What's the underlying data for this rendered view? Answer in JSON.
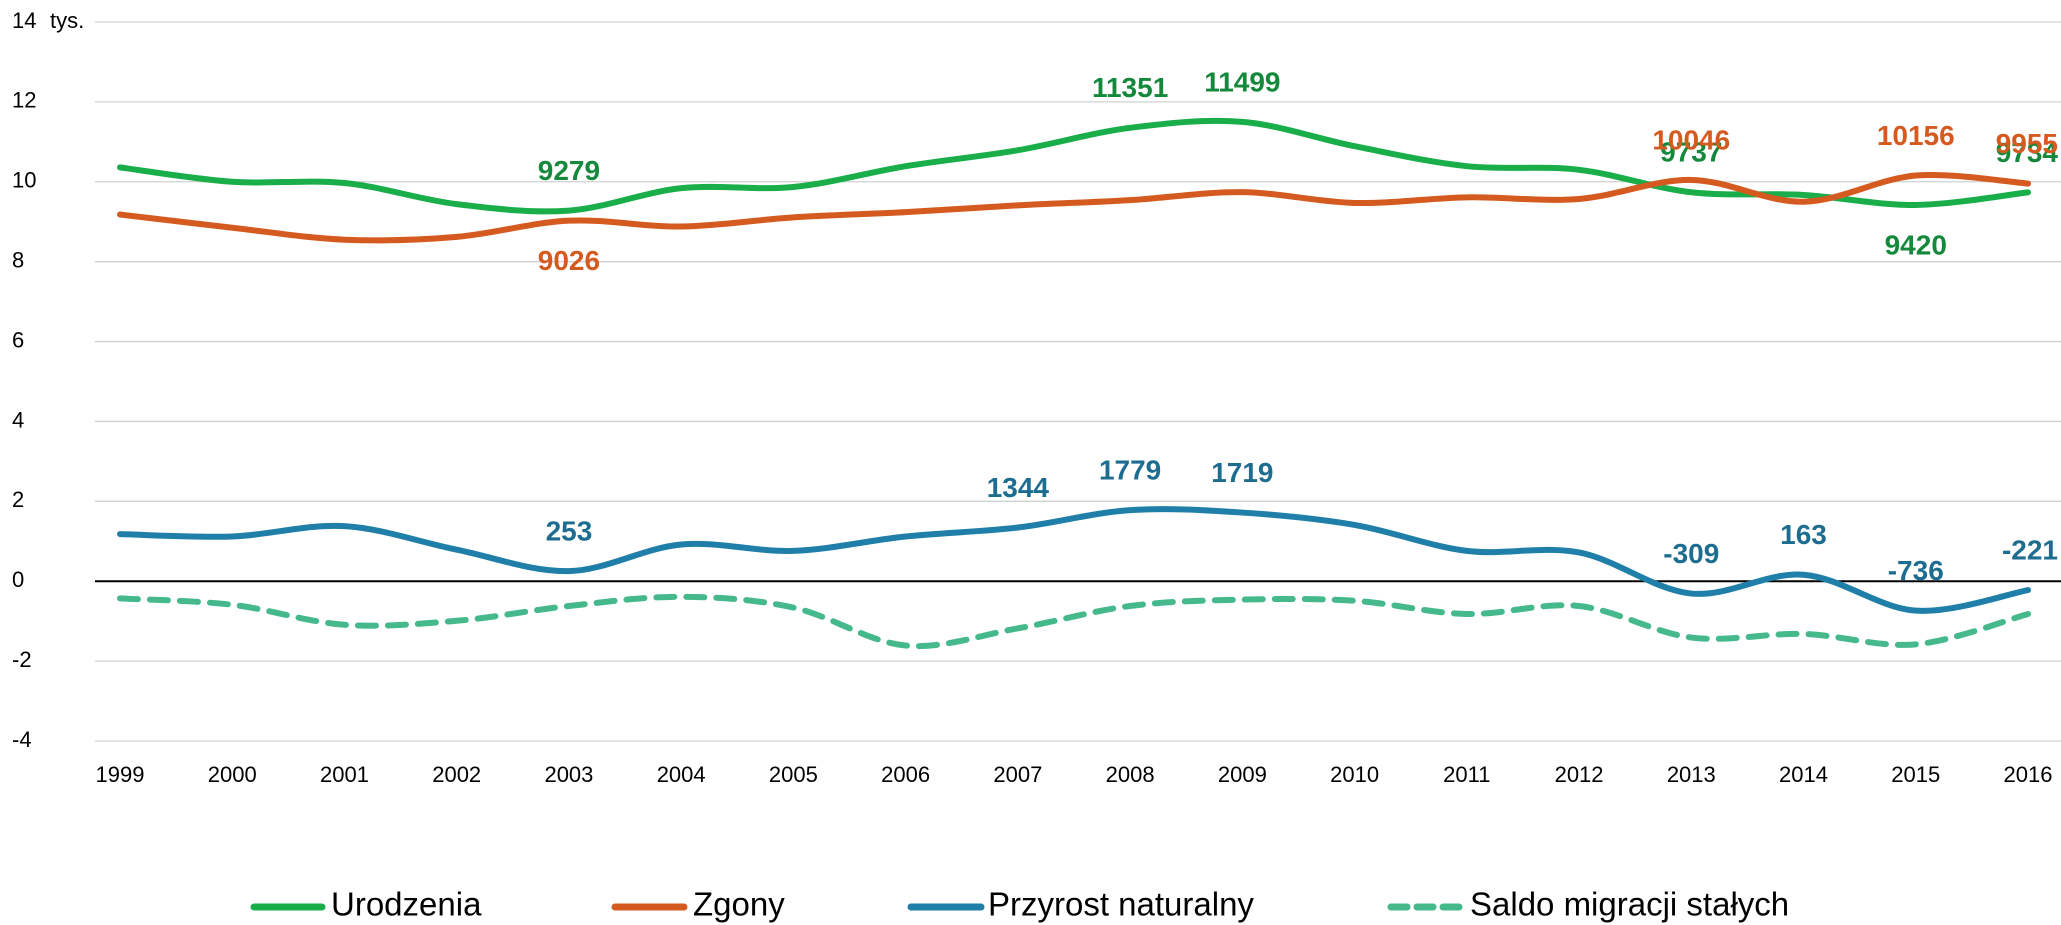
{
  "chart_data": {
    "type": "line",
    "y_unit": "tys.",
    "categories": [
      "1999",
      "2000",
      "2001",
      "2002",
      "2003",
      "2004",
      "2005",
      "2006",
      "2007",
      "2008",
      "2009",
      "2010",
      "2011",
      "2012",
      "2013",
      "2014",
      "2015",
      "2016"
    ],
    "ylim": [
      -4,
      14
    ],
    "yticks": [
      -4,
      -2,
      0,
      2,
      4,
      6,
      8,
      10,
      12,
      14
    ],
    "grid": true,
    "legend": "bottom",
    "series": [
      {
        "name": "Urodzenia",
        "color": "#1aae4a",
        "label_color": "#14893b",
        "dashed": false,
        "values": [
          10.36,
          10.0,
          9.97,
          9.44,
          9.279,
          9.84,
          9.87,
          10.39,
          10.79,
          11.351,
          11.499,
          10.89,
          10.39,
          10.3,
          9.737,
          9.67,
          9.42,
          9.734
        ],
        "value_labels": [
          null,
          null,
          null,
          null,
          "9279",
          null,
          null,
          null,
          null,
          "11351",
          "11499",
          null,
          null,
          null,
          "9737",
          null,
          "9420",
          "9734"
        ]
      },
      {
        "name": "Zgony",
        "color": "#d45a1f",
        "label_color": "#d45a1f",
        "dashed": false,
        "values": [
          9.18,
          8.85,
          8.55,
          8.62,
          9.026,
          8.88,
          9.11,
          9.24,
          9.41,
          9.54,
          9.74,
          9.47,
          9.61,
          9.57,
          10.046,
          9.5,
          10.156,
          9.955
        ],
        "value_labels": [
          null,
          null,
          null,
          null,
          "9026",
          null,
          null,
          null,
          null,
          null,
          null,
          null,
          null,
          null,
          "10046",
          null,
          "10156",
          "9955"
        ]
      },
      {
        "name": "Przyrost naturalny",
        "color": "#1f7fa8",
        "label_color": "#1d6d90",
        "dashed": false,
        "values": [
          1.18,
          1.12,
          1.38,
          0.79,
          0.253,
          0.92,
          0.76,
          1.12,
          1.344,
          1.779,
          1.719,
          1.41,
          0.76,
          0.72,
          -0.309,
          0.163,
          -0.736,
          -0.221
        ],
        "value_labels": [
          null,
          null,
          null,
          null,
          "253",
          null,
          null,
          null,
          "1344",
          "1779",
          "1719",
          null,
          null,
          null,
          "-309",
          "163",
          "-736",
          "-221"
        ]
      },
      {
        "name": "Saldo migracji stałych",
        "color": "#46b98c",
        "label_color": "#46b98c",
        "dashed": true,
        "values": [
          -0.43,
          -0.59,
          -1.09,
          -0.99,
          -0.62,
          -0.39,
          -0.66,
          -1.61,
          -1.18,
          -0.62,
          -0.46,
          -0.49,
          -0.82,
          -0.62,
          -1.41,
          -1.32,
          -1.58,
          -0.82
        ]
      }
    ]
  }
}
